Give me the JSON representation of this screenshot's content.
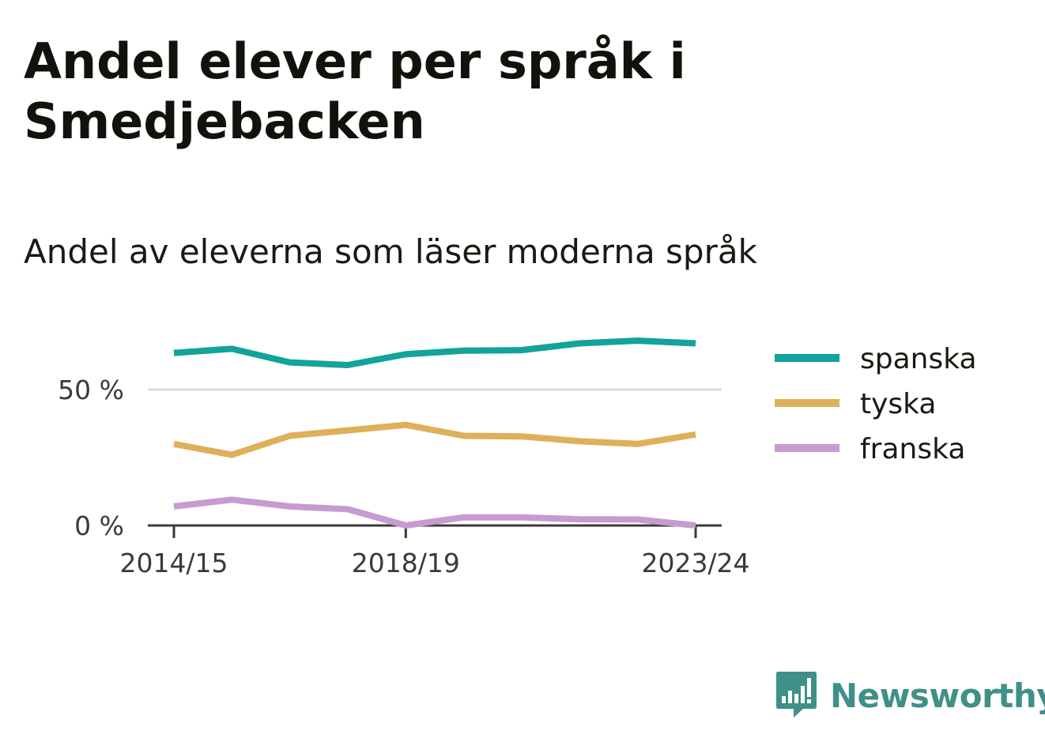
{
  "title": "Andel elever per språk i Smedjebacken",
  "subtitle": "Andel av eleverna som läser moderna språk",
  "brand": {
    "name": "Newsworthy",
    "icon": "newsworthy-logo-icon",
    "color": "#3f9088"
  },
  "chart_data": {
    "type": "line",
    "x": [
      "2014/15",
      "2015/16",
      "2016/17",
      "2017/18",
      "2018/19",
      "2019/20",
      "2020/21",
      "2021/22",
      "2022/23",
      "2023/24"
    ],
    "x_tick_labels": [
      "2014/15",
      "2018/19",
      "2023/24"
    ],
    "y_ticks": [
      0,
      50
    ],
    "y_tick_labels": [
      "0 %",
      "50 %"
    ],
    "ylim": [
      0,
      80
    ],
    "grid": true,
    "legend_position": "right",
    "series": [
      {
        "name": "spanska",
        "color": "#12a39a",
        "values": [
          63.5,
          65,
          60,
          59,
          63,
          64.3,
          64.5,
          67,
          68,
          67
        ]
      },
      {
        "name": "tyska",
        "color": "#deb059",
        "values": [
          30,
          26,
          33,
          35,
          37,
          33,
          32.8,
          31,
          30,
          33.5
        ]
      },
      {
        "name": "franska",
        "color": "#c59cd0",
        "values": [
          7,
          9.5,
          7,
          6,
          0,
          3,
          3,
          2.3,
          2.2,
          0
        ]
      }
    ]
  }
}
